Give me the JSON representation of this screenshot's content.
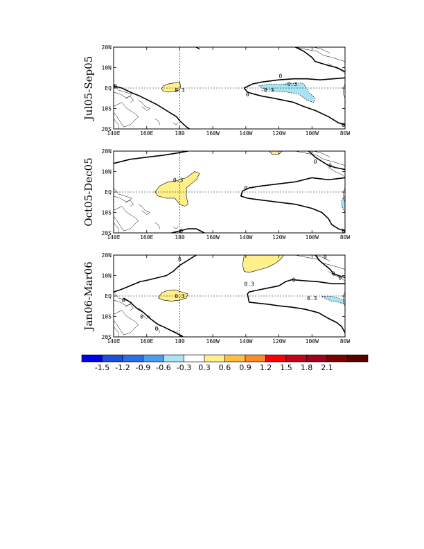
{
  "figure": {
    "lon_ticks": [
      "140E",
      "160E",
      "180",
      "160W",
      "140W",
      "120W",
      "100W",
      "80W"
    ],
    "lat_ticks": [
      "20N",
      "10N",
      "EQ",
      "10S",
      "20S"
    ],
    "panels": [
      {
        "label": "Jul05-Sep05",
        "contour_labels": [
          {
            "text": "0.3",
            "lon": 180,
            "lat": -1
          },
          {
            "text": "0",
            "lon": 221,
            "lat": -3
          },
          {
            "text": "0",
            "lon": 241,
            "lat": 6
          },
          {
            "text": "-0.3",
            "lon": 247,
            "lat": 2
          },
          {
            "text": "-0.3",
            "lon": 233,
            "lat": -1
          },
          {
            "text": "0",
            "lon": 279,
            "lat": -18
          },
          {
            "text": "0",
            "lon": 141,
            "lat": 1
          }
        ],
        "positive_regions": [
          {
            "value_class": "0.3",
            "polygon": [
              [
                169,
                -0.5
              ],
              [
                170,
                1
              ],
              [
                173,
                2
              ],
              [
                177,
                2.5
              ],
              [
                180,
                3
              ],
              [
                180.5,
                1
              ],
              [
                180,
                -1
              ],
              [
                177,
                -1.5
              ],
              [
                173,
                -2
              ],
              [
                170,
                -1.5
              ]
            ]
          }
        ],
        "negative_regions": [
          {
            "value_class": "-0.3",
            "polygon": [
              [
                228,
                1
              ],
              [
                234,
                2
              ],
              [
                240,
                1.8
              ],
              [
                248,
                2.2
              ],
              [
                254,
                2.5
              ],
              [
                256,
                1
              ],
              [
                258,
                -2
              ],
              [
                262,
                -5
              ],
              [
                261,
                -7
              ],
              [
                257,
                -6
              ],
              [
                252,
                -3
              ],
              [
                245,
                -2
              ],
              [
                238,
                -1.5
              ],
              [
                231,
                -0.5
              ]
            ]
          }
        ],
        "zero_contours": [
          [
            [
              140,
              1
            ],
            [
              145,
              0
            ],
            [
              150,
              -2
            ],
            [
              156,
              -4
            ],
            [
              161,
              -6
            ],
            [
              166,
              -8
            ],
            [
              170,
              -10
            ],
            [
              174,
              -12
            ],
            [
              178,
              -14
            ],
            [
              180,
              -16
            ],
            [
              184,
              -19
            ],
            [
              186,
              -20
            ]
          ],
          [
            [
              190,
              20
            ],
            [
              192,
              19
            ]
          ],
          [
            [
              250,
              20
            ],
            [
              255,
              18
            ],
            [
              260,
              15
            ],
            [
              262,
              13
            ],
            [
              270,
              11
            ],
            [
              275,
              10
            ],
            [
              280,
              8
            ]
          ],
          [
            [
              280,
              5
            ],
            [
              265,
              4
            ],
            [
              257,
              4.5
            ],
            [
              249,
              4.5
            ],
            [
              240,
              4
            ],
            [
              230,
              3
            ],
            [
              224,
              2
            ],
            [
              219,
              0
            ],
            [
              221,
              -2
            ],
            [
              225,
              -3
            ],
            [
              230,
              -4
            ],
            [
              237,
              -5
            ],
            [
              243,
              -6
            ],
            [
              249,
              -7
            ],
            [
              255,
              -9
            ],
            [
              262,
              -11
            ],
            [
              270,
              -14
            ],
            [
              276,
              -17
            ],
            [
              280,
              -18
            ]
          ]
        ]
      },
      {
        "label": "Oct05-Dec05",
        "contour_labels": [
          {
            "text": "0.3",
            "lon": 179,
            "lat": 6
          },
          {
            "text": "0",
            "lon": 220,
            "lat": 2
          },
          {
            "text": "0",
            "lon": 181,
            "lat": -19
          },
          {
            "text": "0",
            "lon": 279,
            "lat": -19
          },
          {
            "text": "0",
            "lon": 262,
            "lat": 15
          },
          {
            "text": "0",
            "lon": 271,
            "lat": 13
          }
        ],
        "positive_regions": [
          {
            "value_class": "0.3",
            "polygon": [
              [
                165,
                0
              ],
              [
                168,
                3
              ],
              [
                173,
                5
              ],
              [
                178,
                5.5
              ],
              [
                184,
                7
              ],
              [
                189,
                10
              ],
              [
                192,
                9
              ],
              [
                190,
                6
              ],
              [
                187,
                4
              ],
              [
                184,
                2
              ],
              [
                184,
                -2
              ],
              [
                185,
                -6
              ],
              [
                183,
                -7
              ],
              [
                180,
                -6
              ],
              [
                177,
                -3
              ],
              [
                172,
                -3
              ],
              [
                167,
                -2
              ]
            ]
          },
          {
            "value_class": "0.3",
            "polygon": [
              [
                234,
                20
              ],
              [
                242,
                20
              ],
              [
                240,
                18.5
              ],
              [
                236,
                18.5
              ]
            ]
          }
        ],
        "negative_regions": [
          {
            "value_class": "-0.3",
            "polygon": [
              [
                280,
                -2
              ],
              [
                278,
                -4
              ],
              [
                278,
                -7
              ],
              [
                280,
                -10
              ]
            ]
          }
        ],
        "zero_contours": [
          [
            [
              140,
              14
            ],
            [
              150,
              16
            ],
            [
              160,
              17
            ],
            [
              170,
              18
            ],
            [
              178,
              19
            ],
            [
              185,
              20
            ]
          ],
          [
            [
              258,
              20
            ],
            [
              262,
              17
            ],
            [
              266,
              15
            ],
            [
              270,
              13
            ],
            [
              274,
              12
            ],
            [
              280,
              11
            ]
          ],
          [
            [
              280,
              7
            ],
            [
              270,
              6
            ],
            [
              260,
              7
            ],
            [
              250,
              5
            ],
            [
              240,
              4
            ],
            [
              230,
              3
            ],
            [
              222,
              2
            ],
            [
              218,
              0.5
            ],
            [
              217,
              -2
            ],
            [
              221,
              -3
            ],
            [
              230,
              -4
            ],
            [
              240,
              -5
            ],
            [
              250,
              -6
            ],
            [
              260,
              -8
            ],
            [
              266,
              -10
            ],
            [
              270,
              -13
            ],
            [
              272,
              -16
            ],
            [
              276,
              -18
            ],
            [
              280,
              -19
            ]
          ],
          [
            [
              175,
              -20
            ],
            [
              180,
              -19
            ],
            [
              185,
              -18
            ],
            [
              190,
              -18
            ],
            [
              195,
              -20
            ]
          ]
        ]
      },
      {
        "label": "Jan06-Mar06",
        "contour_labels": [
          {
            "text": "0.3",
            "lon": 180,
            "lat": 0
          },
          {
            "text": "0.3",
            "lon": 222,
            "lat": 6
          },
          {
            "text": "0",
            "lon": 180,
            "lat": 18
          },
          {
            "text": "0",
            "lon": 249,
            "lat": 8
          },
          {
            "text": "0",
            "lon": 268,
            "lat": 19
          },
          {
            "text": "0",
            "lon": 273,
            "lat": 11
          },
          {
            "text": "0",
            "lon": 277,
            "lat": 9
          },
          {
            "text": "0",
            "lon": 146,
            "lat": -2
          },
          {
            "text": "0",
            "lon": 157,
            "lat": -10
          },
          {
            "text": "0",
            "lon": 166,
            "lat": -16
          },
          {
            "text": "0",
            "lon": 181,
            "lat": -20
          },
          {
            "text": "0.3",
            "lon": 260,
            "lat": -1
          }
        ],
        "positive_regions": [
          {
            "value_class": "0.3",
            "polygon": [
              [
                167,
                -1
              ],
              [
                169,
                1.5
              ],
              [
                172,
                2.5
              ],
              [
                177,
                3
              ],
              [
                181,
                2
              ],
              [
                185,
                1
              ],
              [
                184,
                -1
              ],
              [
                180,
                -2
              ],
              [
                175,
                -2.5
              ],
              [
                170,
                -2
              ]
            ]
          },
          {
            "value_class": "0.3",
            "polygon": [
              [
                219,
                20
              ],
              [
                243,
                20
              ],
              [
                241,
                18
              ],
              [
                238,
                16
              ],
              [
                233,
                14
              ],
              [
                229,
                13
              ],
              [
                222,
                11.5
              ],
              [
                219,
                12
              ],
              [
                218,
                15
              ]
            ]
          }
        ],
        "negative_regions": [
          {
            "value_class": "-0.3",
            "polygon": [
              [
                266,
                -0.3
              ],
              [
                270,
                0
              ],
              [
                274,
                -0.5
              ],
              [
                277,
                -1.5
              ],
              [
                280,
                -2
              ],
              [
                280,
                -4
              ],
              [
                276,
                -3
              ],
              [
                272,
                -2.5
              ],
              [
                268,
                -1.2
              ]
            ]
          }
        ],
        "zero_contours": [
          [
            [
              140,
              2
            ],
            [
              144,
              3
            ],
            [
              150,
              5
            ],
            [
              156,
              7
            ],
            [
              162,
              8
            ],
            [
              167,
              9
            ],
            [
              172,
              10
            ],
            [
              176,
              12
            ],
            [
              180,
              15
            ],
            [
              186,
              18
            ],
            [
              190,
              20
            ]
          ],
          [
            [
              262,
              20
            ],
            [
              265,
              17
            ],
            [
              268,
              15
            ],
            [
              271,
              13
            ],
            [
              273,
              11
            ],
            [
              276,
              10
            ],
            [
              280,
              9
            ]
          ],
          [
            [
              280,
              6
            ],
            [
              272,
              6
            ],
            [
              264,
              7
            ],
            [
              255,
              7.5
            ],
            [
              248,
              8
            ],
            [
              244,
              7
            ],
            [
              240,
              5
            ],
            [
              234,
              4
            ],
            [
              228,
              3
            ],
            [
              222,
              2
            ],
            [
              221,
              1
            ],
            [
              222,
              -3
            ],
            [
              227,
              -3.5
            ],
            [
              233,
              -4
            ],
            [
              240,
              -4.8
            ],
            [
              248,
              -5.5
            ],
            [
              256,
              -6.5
            ],
            [
              264,
              -8.2
            ],
            [
              270,
              -11
            ],
            [
              275,
              -13
            ],
            [
              278,
              -15
            ],
            [
              280,
              -18
            ]
          ],
          [
            [
              146,
              -1
            ],
            [
              150,
              -3
            ],
            [
              154,
              -6
            ],
            [
              158,
              -8
            ],
            [
              162,
              -11
            ],
            [
              167,
              -14
            ],
            [
              170,
              -15
            ],
            [
              175,
              -17
            ],
            [
              180,
              -19
            ],
            [
              182,
              -20
            ]
          ]
        ]
      }
    ]
  },
  "colorbar": {
    "colors": [
      "#0000f0",
      "#1e50e0",
      "#2a70e8",
      "#4c9cf0",
      "#a8e4f4",
      "#ffffff",
      "#fff08c",
      "#ffc040",
      "#ff8a28",
      "#ff0000",
      "#c8001e",
      "#a0001e",
      "#7c0000",
      "#560000"
    ],
    "labels": [
      "-1.5",
      "-1.2",
      "-0.9",
      "-0.6",
      "-0.3",
      "0.3",
      "0.6",
      "0.9",
      "1.2",
      "1.5",
      "1.8",
      "2.1"
    ]
  }
}
